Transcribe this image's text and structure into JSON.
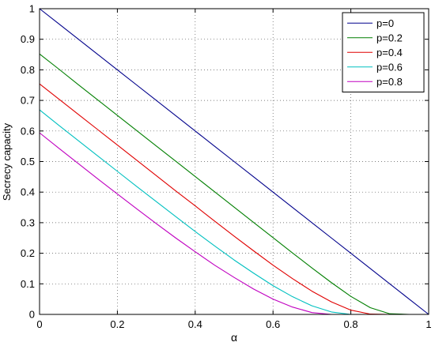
{
  "chart_data": {
    "type": "line",
    "title": "",
    "xlabel": "α",
    "ylabel": "Secrecy capacity",
    "xlim": [
      0,
      1
    ],
    "ylim": [
      0,
      1
    ],
    "xticks": [
      0,
      0.2,
      0.4,
      0.6,
      0.8,
      1
    ],
    "xtick_labels": [
      "0",
      "0.2",
      "0.4",
      "0.6",
      "0.8",
      "1"
    ],
    "yticks": [
      0,
      0.1,
      0.2,
      0.3,
      0.4,
      0.5,
      0.6,
      0.7,
      0.8,
      0.9,
      1
    ],
    "ytick_labels": [
      "0",
      "0.1",
      "0.2",
      "0.3",
      "0.4",
      "0.5",
      "0.6",
      "0.7",
      "0.8",
      "0.9",
      "1"
    ],
    "grid": true,
    "legend_position": "top-right",
    "x": [
      0,
      0.05,
      0.1,
      0.15,
      0.2,
      0.25,
      0.3,
      0.35,
      0.4,
      0.45,
      0.5,
      0.55,
      0.6,
      0.65,
      0.7,
      0.75,
      0.8,
      0.85,
      0.9,
      0.95,
      1.0
    ],
    "series": [
      {
        "name": "p=0",
        "color": "#00008b",
        "values": [
          1.0,
          0.95,
          0.9,
          0.85,
          0.8,
          0.75,
          0.7,
          0.65,
          0.6,
          0.55,
          0.5,
          0.45,
          0.4,
          0.35,
          0.3,
          0.25,
          0.2,
          0.15,
          0.1,
          0.05,
          0.0
        ]
      },
      {
        "name": "p=0.2",
        "color": "#007f00",
        "values": [
          0.852,
          0.802,
          0.751,
          0.701,
          0.651,
          0.601,
          0.551,
          0.501,
          0.451,
          0.401,
          0.351,
          0.301,
          0.251,
          0.201,
          0.152,
          0.104,
          0.059,
          0.022,
          0.002,
          0.0,
          0.0
        ]
      },
      {
        "name": "p=0.4",
        "color": "#e00000",
        "values": [
          0.754,
          0.704,
          0.654,
          0.604,
          0.554,
          0.504,
          0.454,
          0.404,
          0.355,
          0.305,
          0.256,
          0.208,
          0.161,
          0.117,
          0.076,
          0.041,
          0.014,
          0.001,
          0.0,
          0.0,
          0.0
        ]
      },
      {
        "name": "p=0.6",
        "color": "#00c0c0",
        "values": [
          0.669,
          0.618,
          0.568,
          0.518,
          0.468,
          0.418,
          0.369,
          0.32,
          0.271,
          0.224,
          0.178,
          0.135,
          0.094,
          0.058,
          0.028,
          0.008,
          0.0,
          0.0,
          0.0,
          0.0,
          0.0
        ]
      },
      {
        "name": "p=0.8",
        "color": "#c000c0",
        "values": [
          0.594,
          0.543,
          0.493,
          0.443,
          0.394,
          0.345,
          0.297,
          0.25,
          0.205,
          0.161,
          0.121,
          0.083,
          0.05,
          0.024,
          0.006,
          0.0,
          0.0,
          0.0,
          0.0,
          0.0,
          0.0
        ]
      }
    ]
  }
}
